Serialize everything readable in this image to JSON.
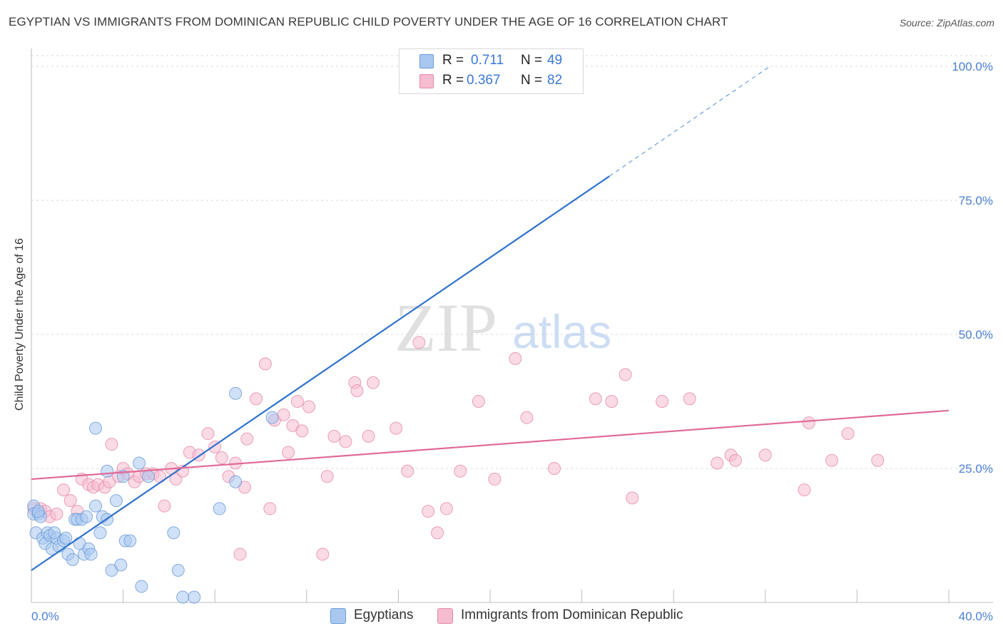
{
  "title": "EGYPTIAN VS IMMIGRANTS FROM DOMINICAN REPUBLIC CHILD POVERTY UNDER THE AGE OF 16 CORRELATION CHART",
  "source": "Source: ZipAtlas.com",
  "watermark": "ZIPatlas",
  "legend": {
    "rows": [
      {
        "r_label": "R =",
        "r_value": "0.711",
        "n_label": "N =",
        "n_value": "49"
      },
      {
        "r_label": "R =",
        "r_value": "0.367",
        "n_label": "N =",
        "n_value": "82"
      }
    ]
  },
  "colors": {
    "blue_fill": "#a9c8f0",
    "blue_stroke": "#6a9ad8",
    "blue_line": "#2f72cc",
    "pink_fill": "#f6bcd0",
    "pink_stroke": "#e58aaa",
    "pink_line": "#e06a98",
    "grid": "#d8d8d8",
    "tick_text": "#4a7fd4"
  },
  "chart_data": {
    "type": "scatter",
    "title": "EGYPTIAN VS IMMIGRANTS FROM DOMINICAN REPUBLIC CHILD POVERTY UNDER THE AGE OF 16 CORRELATION CHART",
    "xlabel": "",
    "ylabel": "Child Poverty Under the Age of 16",
    "xlim": [
      0,
      40
    ],
    "ylim": [
      0,
      102
    ],
    "x_tick_labels": [
      "0.0%",
      "40.0%"
    ],
    "y_ticks": [
      25,
      50,
      75,
      100
    ],
    "y_tick_labels": [
      "25.0%",
      "50.0%",
      "75.0%",
      "100.0%"
    ],
    "grid": true,
    "legend_position": "top-center",
    "series": [
      {
        "name": "Egyptians",
        "r": 0.711,
        "n": 49,
        "trend": {
          "x0": 0,
          "y0": 6.0,
          "x1": 25.2,
          "y1": 79.5,
          "dashed_to_x": 32.2,
          "dashed_to_y": 100
        },
        "points": [
          [
            0.1,
            18
          ],
          [
            0.1,
            16.5
          ],
          [
            0.2,
            13
          ],
          [
            0.3,
            16.5
          ],
          [
            0.5,
            12
          ],
          [
            0.6,
            11
          ],
          [
            0.7,
            13
          ],
          [
            0.8,
            12.5
          ],
          [
            0.9,
            10
          ],
          [
            1.1,
            12
          ],
          [
            1.2,
            10.5
          ],
          [
            1.4,
            11.5
          ],
          [
            1.5,
            12
          ],
          [
            1.6,
            9
          ],
          [
            1.8,
            8
          ],
          [
            1.9,
            15.5
          ],
          [
            2.0,
            15.5
          ],
          [
            2.1,
            11
          ],
          [
            2.2,
            15.5
          ],
          [
            2.3,
            9
          ],
          [
            2.4,
            16
          ],
          [
            2.5,
            10
          ],
          [
            2.6,
            9
          ],
          [
            2.8,
            18
          ],
          [
            3.0,
            13
          ],
          [
            3.1,
            16
          ],
          [
            3.3,
            15.5
          ],
          [
            3.5,
            6
          ],
          [
            3.7,
            19
          ],
          [
            3.9,
            7
          ],
          [
            4.1,
            11.5
          ],
          [
            4.3,
            11.5
          ],
          [
            4.7,
            26
          ],
          [
            4.8,
            3
          ],
          [
            5.1,
            23.5
          ],
          [
            6.2,
            13
          ],
          [
            6.4,
            6
          ],
          [
            6.6,
            1
          ],
          [
            7.1,
            1
          ],
          [
            8.2,
            17.5
          ],
          [
            8.9,
            22.5
          ],
          [
            8.9,
            39
          ],
          [
            10.5,
            34.5
          ],
          [
            2.8,
            32.5
          ],
          [
            3.3,
            24.5
          ],
          [
            4.0,
            23.5
          ],
          [
            0.4,
            16
          ],
          [
            1.0,
            13
          ],
          [
            0.3,
            17
          ]
        ]
      },
      {
        "name": "Immigrants from Dominican Republic",
        "r": 0.367,
        "n": 82,
        "trend": {
          "x0": 0,
          "y0": 23.0,
          "x1": 40,
          "y1": 35.8
        },
        "points": [
          [
            0.1,
            17.5
          ],
          [
            0.4,
            17.5
          ],
          [
            0.6,
            17
          ],
          [
            0.8,
            16
          ],
          [
            1.1,
            16.5
          ],
          [
            1.4,
            21
          ],
          [
            1.7,
            19
          ],
          [
            2.0,
            17
          ],
          [
            2.2,
            23
          ],
          [
            2.5,
            22
          ],
          [
            2.7,
            21.5
          ],
          [
            2.9,
            22
          ],
          [
            3.2,
            21.5
          ],
          [
            3.4,
            22.5
          ],
          [
            3.5,
            29.5
          ],
          [
            3.8,
            23.5
          ],
          [
            4.0,
            25
          ],
          [
            4.2,
            24
          ],
          [
            4.5,
            22.5
          ],
          [
            4.7,
            23.5
          ],
          [
            5.0,
            24
          ],
          [
            5.3,
            24
          ],
          [
            5.6,
            23.5
          ],
          [
            5.8,
            18
          ],
          [
            6.1,
            25
          ],
          [
            6.3,
            23
          ],
          [
            6.6,
            24.5
          ],
          [
            6.9,
            28
          ],
          [
            7.3,
            27.5
          ],
          [
            7.7,
            31.5
          ],
          [
            8.0,
            29
          ],
          [
            8.3,
            27
          ],
          [
            8.6,
            23.5
          ],
          [
            8.9,
            26
          ],
          [
            9.1,
            9
          ],
          [
            9.3,
            21.5
          ],
          [
            9.4,
            30.5
          ],
          [
            9.8,
            38
          ],
          [
            10.2,
            44.5
          ],
          [
            10.4,
            17.5
          ],
          [
            10.6,
            34
          ],
          [
            11.0,
            35
          ],
          [
            11.2,
            28
          ],
          [
            11.4,
            33
          ],
          [
            11.6,
            37.5
          ],
          [
            11.8,
            32
          ],
          [
            12.1,
            36.5
          ],
          [
            12.7,
            9
          ],
          [
            12.9,
            23.5
          ],
          [
            13.2,
            31
          ],
          [
            13.7,
            30
          ],
          [
            14.1,
            41
          ],
          [
            14.2,
            39.5
          ],
          [
            14.7,
            31
          ],
          [
            14.9,
            41
          ],
          [
            15.9,
            32.5
          ],
          [
            16.4,
            24.5
          ],
          [
            16.9,
            48.5
          ],
          [
            17.3,
            17
          ],
          [
            17.7,
            13
          ],
          [
            18.1,
            17.5
          ],
          [
            18.7,
            24.5
          ],
          [
            19.5,
            37.5
          ],
          [
            20.2,
            23
          ],
          [
            21.1,
            45.5
          ],
          [
            21.6,
            34.5
          ],
          [
            22.8,
            25
          ],
          [
            24.6,
            38
          ],
          [
            25.3,
            37.5
          ],
          [
            25.9,
            42.5
          ],
          [
            26.2,
            19.5
          ],
          [
            27.5,
            37.5
          ],
          [
            28.7,
            38
          ],
          [
            29.9,
            26
          ],
          [
            30.5,
            27.5
          ],
          [
            30.7,
            26.5
          ],
          [
            32.0,
            27.5
          ],
          [
            33.7,
            21
          ],
          [
            33.9,
            33.5
          ],
          [
            34.9,
            26.5
          ],
          [
            35.6,
            31.5
          ],
          [
            36.9,
            26.5
          ]
        ]
      }
    ]
  },
  "bottom_legend": [
    {
      "label": "Egyptians"
    },
    {
      "label": "Immigrants from Dominican Republic"
    }
  ]
}
